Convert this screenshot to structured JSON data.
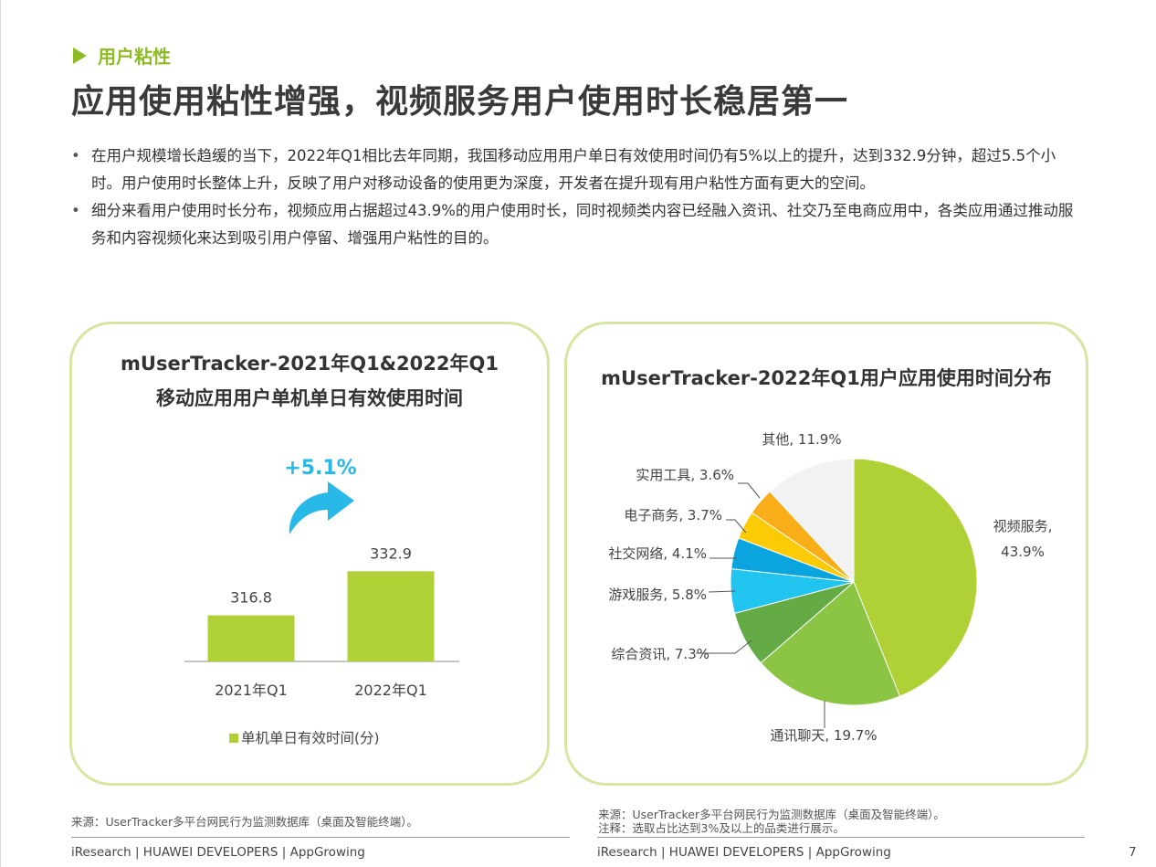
{
  "section_tag": "用户粘性",
  "page_title": "应用使用粘性增强，视频服务用户使用时长稳居第一",
  "bullets": [
    "在用户规模增长趋缓的当下，2022年Q1相比去年同期，我国移动应用用户单日有效使用时间仍有5%以上的提升，达到332.9分钟，超过5.5个小时。用户使用时长整体上升，反映了用户对移动设备的使用更为深度，开发者在提升现有用户粘性方面有更大的空间。",
    "细分来看用户使用时长分布，视频应用占据超过43.9%的用户使用时长，同时视频类内容已经融入资讯、社交乃至电商应用中，各类应用通过推动服务和内容视频化来达到吸引用户停留、增强用户粘性的目的。"
  ],
  "left_card": {
    "title_line1": "mUserTracker-2021年Q1&2022年Q1",
    "title_line2": "移动应用用户单机单日有效使用时间"
  },
  "right_card": {
    "title": "mUserTracker-2022年Q1用户应用使用时间分布"
  },
  "chart_data": [
    {
      "type": "bar",
      "categories": [
        "2021年Q1",
        "2022年Q1"
      ],
      "series": [
        {
          "name": "单机单日有效时间(分)",
          "values": [
            316.8,
            332.9
          ]
        }
      ],
      "value_labels": [
        "316.8",
        "332.9"
      ],
      "annotation": "+5.1%",
      "legend_position": "bottom",
      "color": "#afd136",
      "annotation_color": "#29b9e8",
      "grid": false
    },
    {
      "type": "pie",
      "slices": [
        {
          "label": "视频服务",
          "value": 43.9,
          "display": "视频服务,",
          "display2": "43.9%",
          "color": "#afd136"
        },
        {
          "label": "通讯聊天",
          "value": 19.7,
          "display": "通讯聊天, 19.7%",
          "color": "#8cc443"
        },
        {
          "label": "综合资讯",
          "value": 7.3,
          "display": "综合资讯, 7.3%",
          "color": "#64ab46"
        },
        {
          "label": "游戏服务",
          "value": 5.8,
          "display": "游戏服务, 5.8%",
          "color": "#20c4ef"
        },
        {
          "label": "社交网络",
          "value": 4.1,
          "display": "社交网络, 4.1%",
          "color": "#0aa5de"
        },
        {
          "label": "电子商务",
          "value": 3.7,
          "display": "电子商务, 3.7%",
          "color": "#fccb05"
        },
        {
          "label": "实用工具",
          "value": 3.6,
          "display": "实用工具, 3.6%",
          "color": "#f9ae19"
        },
        {
          "label": "其他",
          "value": 11.9,
          "display": "其他, 11.9%",
          "color": "#f2f2f2"
        }
      ]
    }
  ],
  "sources": {
    "left": "来源：UserTracker多平台网民行为监测数据库（桌面及智能终端）。",
    "right_line1": "来源：UserTracker多平台网民行为监测数据库（桌面及智能终端）。",
    "right_line2": "注释：选取占比达到3%及以上的品类进行展示。"
  },
  "footer": {
    "left": "iResearch | HUAWEI DEVELOPERS | AppGrowing",
    "right": "iResearch | HUAWEI DEVELOPERS | AppGrowing",
    "page_number": "7"
  }
}
